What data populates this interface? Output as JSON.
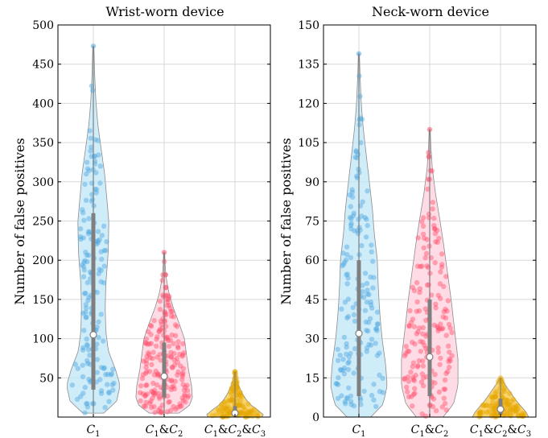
{
  "chart_data": [
    {
      "type": "violin",
      "title": "Wrist-worn device",
      "ylabel": "Number of false positives",
      "xlabel": "",
      "ylim": [
        0,
        500
      ],
      "yticks": [
        50,
        100,
        150,
        200,
        250,
        300,
        350,
        400,
        450,
        500
      ],
      "grid": true,
      "categories": [
        {
          "base": "C",
          "sub": [
            "1"
          ]
        },
        {
          "base": "C",
          "sub": [
            "1",
            "2"
          ]
        },
        {
          "base": "C",
          "sub": [
            "1",
            "2",
            "3"
          ]
        }
      ],
      "series": [
        {
          "color": "#4fa8e0",
          "fill": "#bfe6f7",
          "min": 5,
          "max": 473,
          "median": 105,
          "q1": 35,
          "q3": 260,
          "profile": [
            [
              5,
              0.35
            ],
            [
              20,
              0.78
            ],
            [
              40,
              0.9
            ],
            [
              60,
              0.75
            ],
            [
              85,
              0.5
            ],
            [
              110,
              0.42
            ],
            [
              140,
              0.4
            ],
            [
              170,
              0.42
            ],
            [
              210,
              0.5
            ],
            [
              250,
              0.52
            ],
            [
              280,
              0.45
            ],
            [
              310,
              0.38
            ],
            [
              340,
              0.27
            ],
            [
              370,
              0.16
            ],
            [
              400,
              0.09
            ],
            [
              440,
              0.04
            ],
            [
              473,
              0.02
            ]
          ],
          "points": 160
        },
        {
          "color": "#ff4d6a",
          "fill": "#ffd0dc",
          "min": 5,
          "max": 210,
          "median": 52,
          "q1": 25,
          "q3": 95,
          "profile": [
            [
              5,
              0.5
            ],
            [
              15,
              0.85
            ],
            [
              25,
              0.95
            ],
            [
              40,
              0.92
            ],
            [
              60,
              0.82
            ],
            [
              80,
              0.75
            ],
            [
              100,
              0.68
            ],
            [
              120,
              0.5
            ],
            [
              140,
              0.3
            ],
            [
              160,
              0.15
            ],
            [
              180,
              0.06
            ],
            [
              195,
              0.03
            ],
            [
              210,
              0.02
            ]
          ],
          "points": 200
        },
        {
          "color": "#e5a700",
          "fill": "#f7c43c",
          "min": 0,
          "max": 58,
          "median": 5,
          "q1": 2,
          "q3": 14,
          "profile": [
            [
              0,
              0.9
            ],
            [
              3,
              0.95
            ],
            [
              8,
              0.8
            ],
            [
              15,
              0.55
            ],
            [
              22,
              0.38
            ],
            [
              30,
              0.25
            ],
            [
              38,
              0.15
            ],
            [
              46,
              0.08
            ],
            [
              52,
              0.04
            ],
            [
              58,
              0.02
            ]
          ],
          "points": 120
        }
      ]
    },
    {
      "type": "violin",
      "title": "Neck-worn device",
      "ylabel": "Number of false positives",
      "xlabel": "",
      "ylim": [
        0,
        150
      ],
      "yticks": [
        0,
        15,
        30,
        45,
        60,
        75,
        90,
        105,
        120,
        135,
        150
      ],
      "grid": true,
      "categories": [
        {
          "base": "C",
          "sub": [
            "1"
          ]
        },
        {
          "base": "C",
          "sub": [
            "1",
            "2"
          ]
        },
        {
          "base": "C",
          "sub": [
            "1",
            "2",
            "3"
          ]
        }
      ],
      "series": [
        {
          "color": "#4fa8e0",
          "fill": "#bfe6f7",
          "min": 0,
          "max": 139,
          "median": 32,
          "q1": 8,
          "q3": 60,
          "profile": [
            [
              0,
              0.4
            ],
            [
              5,
              0.82
            ],
            [
              12,
              0.95
            ],
            [
              20,
              0.9
            ],
            [
              30,
              0.78
            ],
            [
              40,
              0.7
            ],
            [
              50,
              0.65
            ],
            [
              60,
              0.62
            ],
            [
              70,
              0.52
            ],
            [
              80,
              0.45
            ],
            [
              90,
              0.35
            ],
            [
              100,
              0.25
            ],
            [
              110,
              0.15
            ],
            [
              120,
              0.08
            ],
            [
              130,
              0.04
            ],
            [
              139,
              0.02
            ]
          ],
          "points": 160
        },
        {
          "color": "#ff4d6a",
          "fill": "#ffd0dc",
          "min": 0,
          "max": 110,
          "median": 23,
          "q1": 8,
          "q3": 45,
          "profile": [
            [
              0,
              0.45
            ],
            [
              5,
              0.8
            ],
            [
              12,
              0.95
            ],
            [
              22,
              0.95
            ],
            [
              32,
              0.85
            ],
            [
              45,
              0.72
            ],
            [
              55,
              0.6
            ],
            [
              65,
              0.48
            ],
            [
              75,
              0.35
            ],
            [
              85,
              0.2
            ],
            [
              95,
              0.09
            ],
            [
              103,
              0.04
            ],
            [
              110,
              0.02
            ]
          ],
          "points": 180
        },
        {
          "color": "#e5a700",
          "fill": "#f7c43c",
          "min": 0,
          "max": 15,
          "median": 3,
          "q1": 1,
          "q3": 7,
          "profile": [
            [
              0,
              0.95
            ],
            [
              2,
              0.85
            ],
            [
              4,
              0.7
            ],
            [
              6,
              0.55
            ],
            [
              8,
              0.42
            ],
            [
              10,
              0.3
            ],
            [
              12,
              0.18
            ],
            [
              14,
              0.07
            ],
            [
              15,
              0.03
            ]
          ],
          "points": 110
        }
      ]
    }
  ]
}
